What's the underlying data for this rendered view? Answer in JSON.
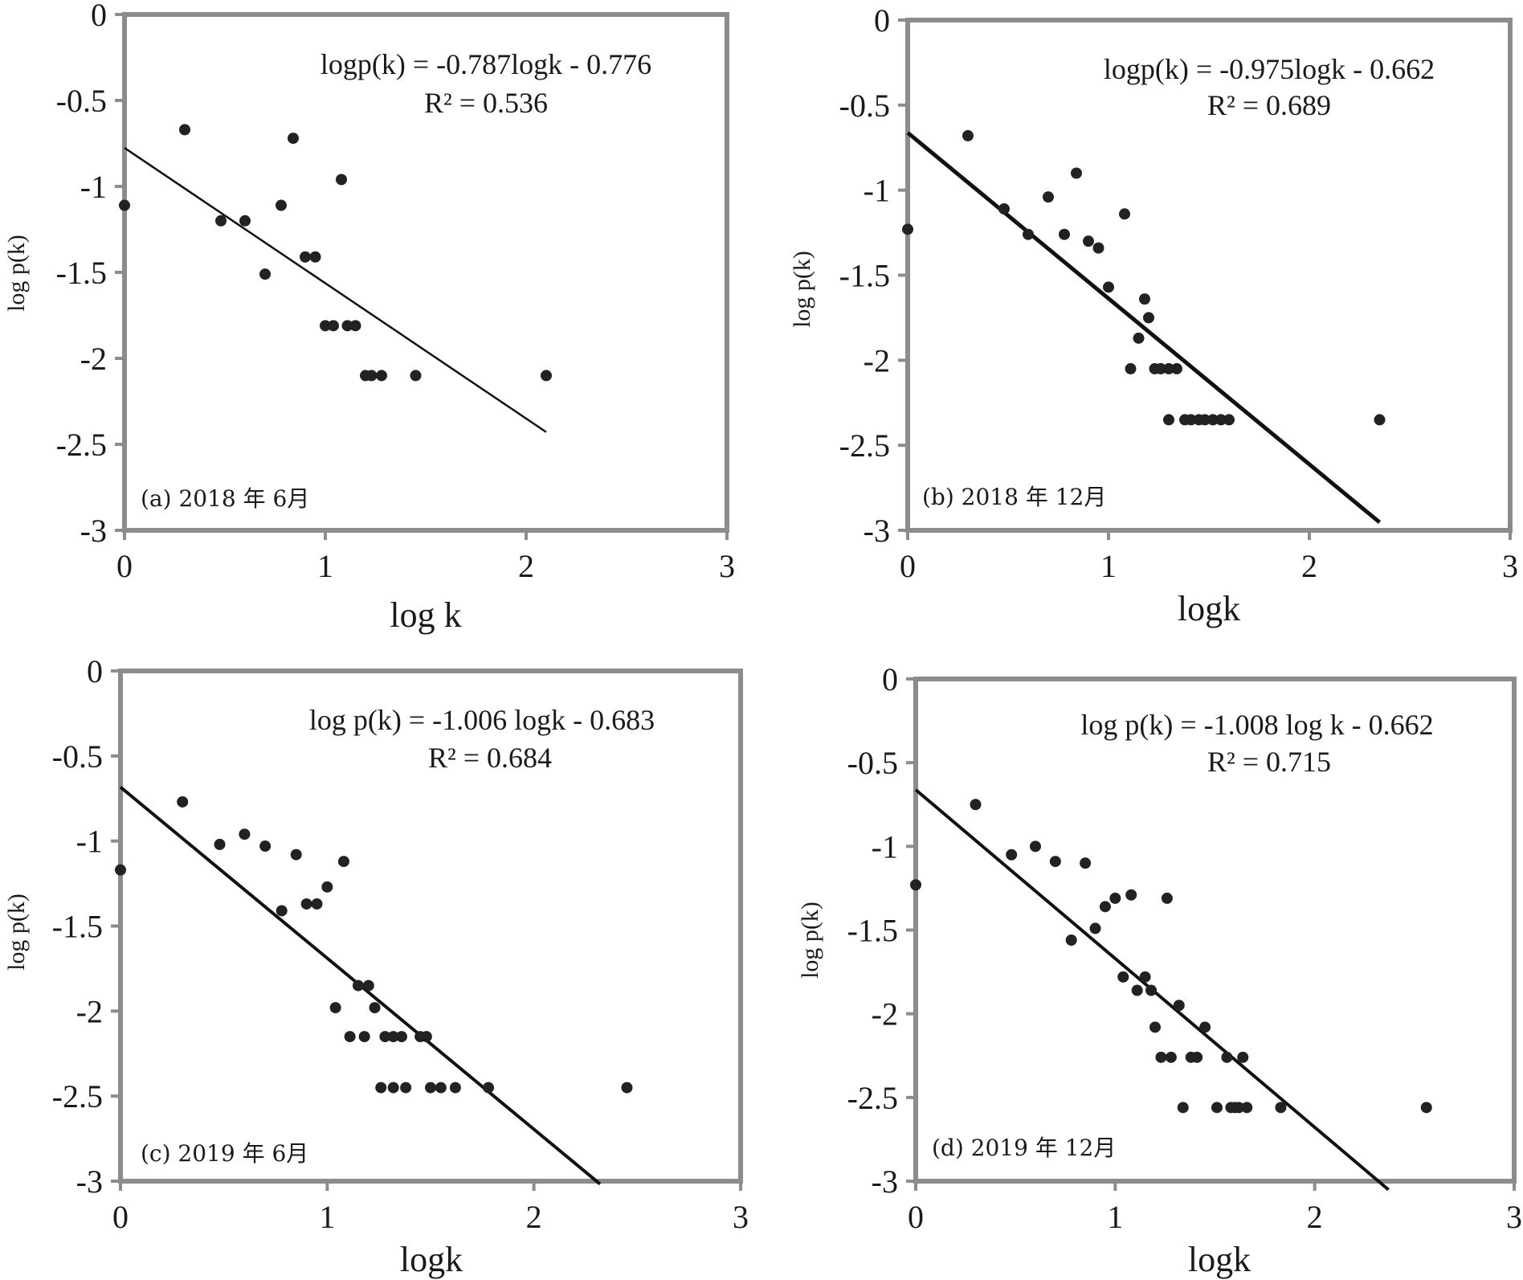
{
  "chart_data": [
    {
      "type": "scatter",
      "panel_label": "(a) 2018 年 6月",
      "equation": "logp(k) = -0.787logk - 0.776",
      "r_squared": "R² = 0.536",
      "xlabel": "log k",
      "ylabel": "log p(k)",
      "xlim": [
        0,
        3
      ],
      "ylim": [
        -3,
        0
      ],
      "x_ticks": [
        "0",
        "1",
        "2",
        "3"
      ],
      "y_ticks": [
        "0",
        "-0.5",
        "-1",
        "-1.5",
        "-2",
        "-2.5",
        "-3"
      ],
      "fit": {
        "slope": -0.787,
        "intercept": -0.776,
        "x_range": [
          0,
          2.1
        ]
      },
      "points": [
        [
          0,
          -1.11
        ],
        [
          0.3,
          -0.67
        ],
        [
          0.48,
          -1.2
        ],
        [
          0.6,
          -1.2
        ],
        [
          0.7,
          -1.51
        ],
        [
          0.78,
          -1.11
        ],
        [
          0.84,
          -0.72
        ],
        [
          0.9,
          -1.41
        ],
        [
          0.95,
          -1.41
        ],
        [
          1.0,
          -1.81
        ],
        [
          1.04,
          -1.81
        ],
        [
          1.08,
          -0.96
        ],
        [
          1.11,
          -1.81
        ],
        [
          1.15,
          -1.81
        ],
        [
          1.2,
          -2.1
        ],
        [
          1.23,
          -2.1
        ],
        [
          1.28,
          -2.1
        ],
        [
          1.45,
          -2.1
        ],
        [
          2.1,
          -2.1
        ]
      ]
    },
    {
      "type": "scatter",
      "panel_label": "(b) 2018 年 12月",
      "equation": "logp(k) = -0.975logk - 0.662",
      "r_squared": "R² = 0.689",
      "xlabel": "logk",
      "ylabel": "log p(k)",
      "xlim": [
        0,
        3
      ],
      "ylim": [
        -3,
        0
      ],
      "x_ticks": [
        "0",
        "1",
        "2",
        "3"
      ],
      "y_ticks": [
        "0",
        "-0.5",
        "-1",
        "-1.5",
        "-2",
        "-2.5",
        "-3"
      ],
      "fit": {
        "slope": -0.975,
        "intercept": -0.662,
        "x_range": [
          0,
          2.35
        ]
      },
      "points": [
        [
          0,
          -1.23
        ],
        [
          0.3,
          -0.68
        ],
        [
          0.48,
          -1.11
        ],
        [
          0.6,
          -1.26
        ],
        [
          0.7,
          -1.04
        ],
        [
          0.78,
          -1.26
        ],
        [
          0.84,
          -0.9
        ],
        [
          0.9,
          -1.3
        ],
        [
          0.95,
          -1.34
        ],
        [
          1.0,
          -1.57
        ],
        [
          1.08,
          -1.14
        ],
        [
          1.11,
          -2.05
        ],
        [
          1.15,
          -1.87
        ],
        [
          1.18,
          -1.64
        ],
        [
          1.2,
          -1.75
        ],
        [
          1.23,
          -2.05
        ],
        [
          1.26,
          -2.05
        ],
        [
          1.3,
          -2.05
        ],
        [
          1.34,
          -2.05
        ],
        [
          1.3,
          -2.35
        ],
        [
          1.38,
          -2.35
        ],
        [
          1.41,
          -2.35
        ],
        [
          1.45,
          -2.35
        ],
        [
          1.48,
          -2.35
        ],
        [
          1.52,
          -2.35
        ],
        [
          1.56,
          -2.35
        ],
        [
          1.6,
          -2.35
        ],
        [
          2.35,
          -2.35
        ]
      ]
    },
    {
      "type": "scatter",
      "panel_label": "(c) 2019 年 6月",
      "equation": "log p(k) = -1.006 logk - 0.683",
      "r_squared": "R² = 0.684",
      "xlabel": "logk",
      "ylabel": "log p(k)",
      "xlim": [
        0,
        3
      ],
      "ylim": [
        -3,
        0
      ],
      "x_ticks": [
        "0",
        "1",
        "2",
        "3"
      ],
      "y_ticks": [
        "0",
        "-0.5",
        "-1",
        "-1.5",
        "-2",
        "-2.5",
        "-3"
      ],
      "fit": {
        "slope": -1.006,
        "intercept": -0.683,
        "x_range": [
          0,
          2.32
        ]
      },
      "points": [
        [
          0,
          -1.17
        ],
        [
          0.3,
          -0.77
        ],
        [
          0.48,
          -1.02
        ],
        [
          0.6,
          -0.96
        ],
        [
          0.7,
          -1.03
        ],
        [
          0.78,
          -1.41
        ],
        [
          0.85,
          -1.08
        ],
        [
          0.9,
          -1.37
        ],
        [
          0.95,
          -1.37
        ],
        [
          1.0,
          -1.27
        ],
        [
          1.04,
          -1.98
        ],
        [
          1.08,
          -1.12
        ],
        [
          1.11,
          -2.15
        ],
        [
          1.15,
          -1.85
        ],
        [
          1.18,
          -2.15
        ],
        [
          1.2,
          -1.85
        ],
        [
          1.23,
          -1.98
        ],
        [
          1.26,
          -2.45
        ],
        [
          1.28,
          -2.15
        ],
        [
          1.32,
          -2.15
        ],
        [
          1.32,
          -2.45
        ],
        [
          1.36,
          -2.15
        ],
        [
          1.38,
          -2.45
        ],
        [
          1.45,
          -2.15
        ],
        [
          1.48,
          -2.15
        ],
        [
          1.5,
          -2.45
        ],
        [
          1.55,
          -2.45
        ],
        [
          1.62,
          -2.45
        ],
        [
          1.78,
          -2.45
        ],
        [
          2.45,
          -2.45
        ]
      ]
    },
    {
      "type": "scatter",
      "panel_label": "(d) 2019 年 12月",
      "equation": "log p(k) = -1.008 log k - 0.662",
      "r_squared": "R² = 0.715",
      "xlabel": "logk",
      "ylabel": "log p(k)",
      "xlim": [
        0,
        3
      ],
      "ylim": [
        -3,
        0
      ],
      "x_ticks": [
        "0",
        "1",
        "2",
        "3"
      ],
      "y_ticks": [
        "0",
        "-0.5",
        "-1",
        "-1.5",
        "-2",
        "-2.5",
        "-3"
      ],
      "fit": {
        "slope": -1.008,
        "intercept": -0.662,
        "x_range": [
          0,
          2.37
        ]
      },
      "points": [
        [
          0,
          -1.23
        ],
        [
          0.3,
          -0.75
        ],
        [
          0.48,
          -1.05
        ],
        [
          0.6,
          -1.0
        ],
        [
          0.7,
          -1.09
        ],
        [
          0.78,
          -1.56
        ],
        [
          0.85,
          -1.1
        ],
        [
          0.9,
          -1.49
        ],
        [
          0.95,
          -1.36
        ],
        [
          1.0,
          -1.31
        ],
        [
          1.04,
          -1.78
        ],
        [
          1.08,
          -1.29
        ],
        [
          1.11,
          -1.86
        ],
        [
          1.15,
          -1.78
        ],
        [
          1.18,
          -1.86
        ],
        [
          1.2,
          -2.08
        ],
        [
          1.23,
          -2.26
        ],
        [
          1.26,
          -1.31
        ],
        [
          1.28,
          -2.26
        ],
        [
          1.32,
          -1.95
        ],
        [
          1.34,
          -2.56
        ],
        [
          1.38,
          -2.26
        ],
        [
          1.41,
          -2.26
        ],
        [
          1.45,
          -2.08
        ],
        [
          1.51,
          -2.56
        ],
        [
          1.56,
          -2.26
        ],
        [
          1.58,
          -2.56
        ],
        [
          1.6,
          -2.56
        ],
        [
          1.62,
          -2.56
        ],
        [
          1.64,
          -2.26
        ],
        [
          1.66,
          -2.56
        ],
        [
          1.83,
          -2.56
        ],
        [
          2.56,
          -2.56
        ]
      ]
    }
  ]
}
